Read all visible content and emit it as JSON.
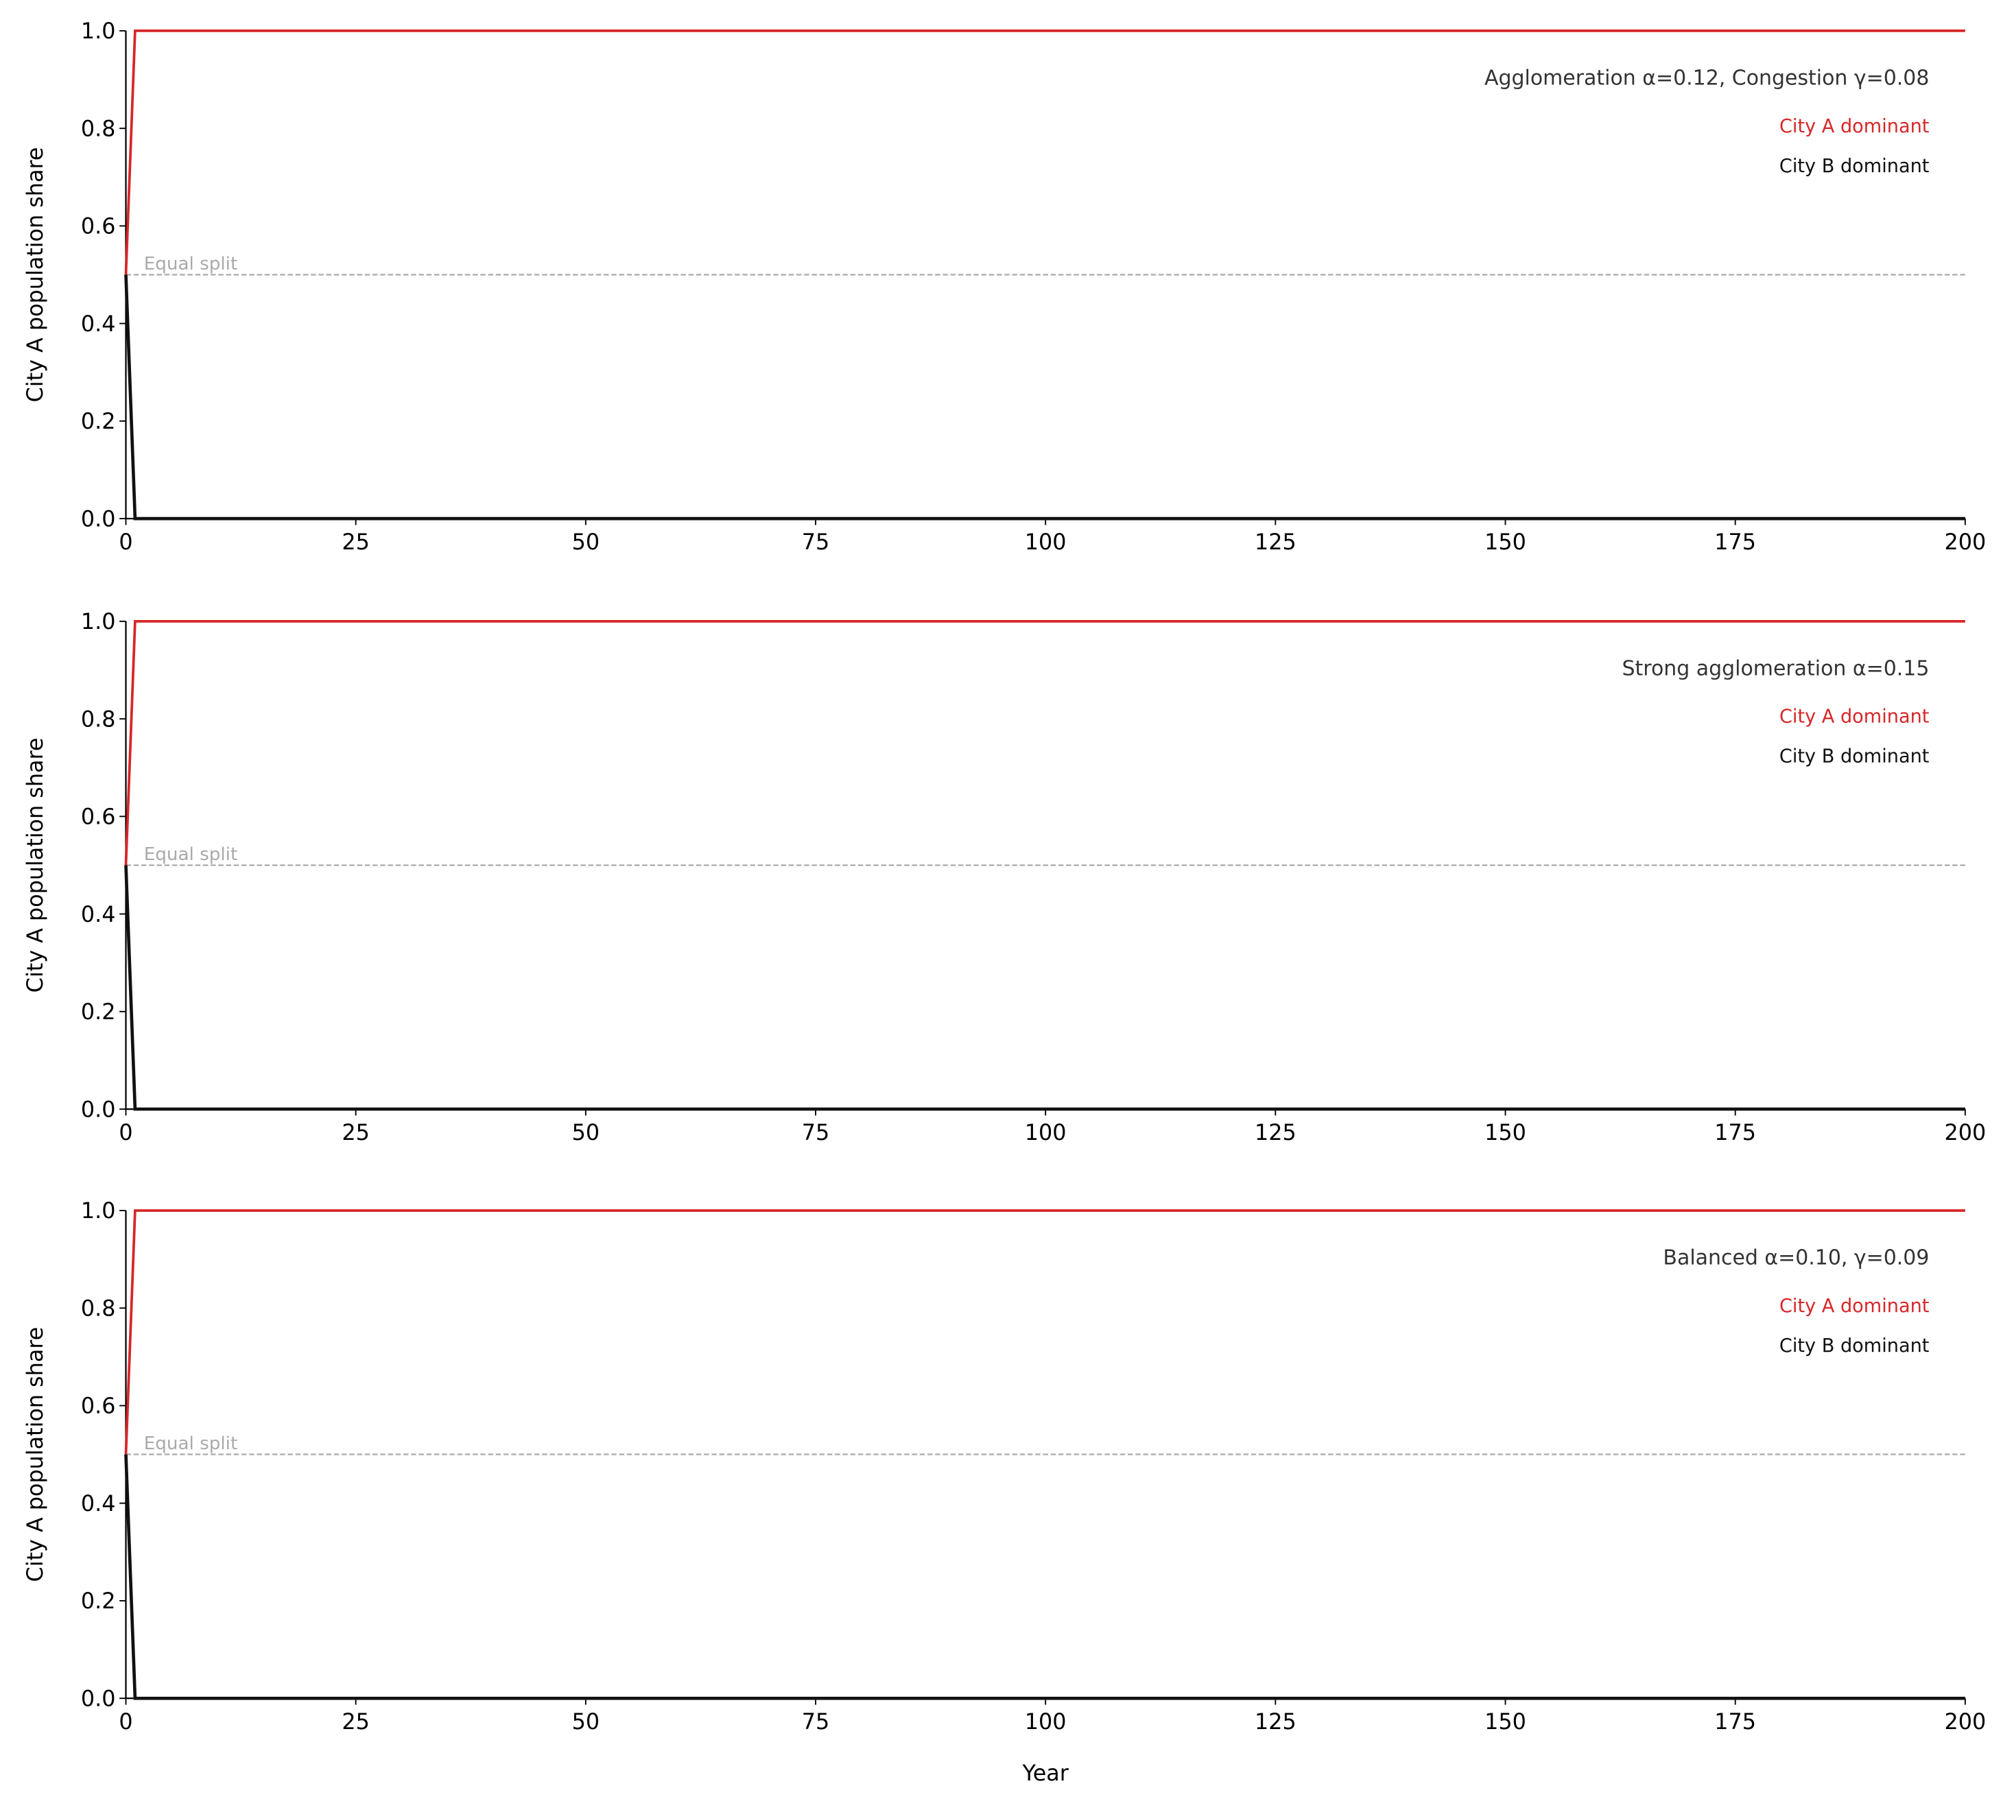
{
  "chart_data": [
    {
      "type": "line",
      "annotation": "Agglomeration α=0.12, Congestion γ=0.08",
      "ylabel": "City A population share",
      "xlabel": "",
      "xlim": [
        0,
        200
      ],
      "ylim": [
        0,
        1
      ],
      "xticks": [
        "0",
        "25",
        "50",
        "75",
        "100",
        "125",
        "150",
        "175",
        "200"
      ],
      "yticks": [
        "0.0",
        "0.2",
        "0.4",
        "0.6",
        "0.8",
        "1.0"
      ],
      "reference": {
        "y": 0.5,
        "label": "Equal split"
      },
      "series": [
        {
          "name": "City A dominant",
          "color": "#d62728",
          "x": [
            0,
            1,
            200
          ],
          "y": [
            0.5,
            1.0,
            1.0
          ]
        },
        {
          "name": "City B dominant",
          "color": "#111111",
          "x": [
            0,
            1,
            200
          ],
          "y": [
            0.5,
            0.0,
            0.0
          ]
        }
      ]
    },
    {
      "type": "line",
      "annotation": "Strong agglomeration α=0.15",
      "ylabel": "City A population share",
      "xlabel": "",
      "xlim": [
        0,
        200
      ],
      "ylim": [
        0,
        1
      ],
      "xticks": [
        "0",
        "25",
        "50",
        "75",
        "100",
        "125",
        "150",
        "175",
        "200"
      ],
      "yticks": [
        "0.0",
        "0.2",
        "0.4",
        "0.6",
        "0.8",
        "1.0"
      ],
      "reference": {
        "y": 0.5,
        "label": "Equal split"
      },
      "series": [
        {
          "name": "City A dominant",
          "color": "#d62728",
          "x": [
            0,
            1,
            200
          ],
          "y": [
            0.5,
            1.0,
            1.0
          ]
        },
        {
          "name": "City B dominant",
          "color": "#111111",
          "x": [
            0,
            1,
            200
          ],
          "y": [
            0.5,
            0.0,
            0.0
          ]
        }
      ]
    },
    {
      "type": "line",
      "annotation": "Balanced α=0.10, γ=0.09",
      "ylabel": "City A population share",
      "xlabel": "Year",
      "xlim": [
        0,
        200
      ],
      "ylim": [
        0,
        1
      ],
      "xticks": [
        "0",
        "25",
        "50",
        "75",
        "100",
        "125",
        "150",
        "175",
        "200"
      ],
      "yticks": [
        "0.0",
        "0.2",
        "0.4",
        "0.6",
        "0.8",
        "1.0"
      ],
      "reference": {
        "y": 0.5,
        "label": "Equal split"
      },
      "series": [
        {
          "name": "City A dominant",
          "color": "#d62728",
          "x": [
            0,
            1,
            200
          ],
          "y": [
            0.5,
            1.0,
            1.0
          ]
        },
        {
          "name": "City B dominant",
          "color": "#111111",
          "x": [
            0,
            1,
            200
          ],
          "y": [
            0.5,
            0.0,
            0.0
          ]
        }
      ]
    }
  ]
}
